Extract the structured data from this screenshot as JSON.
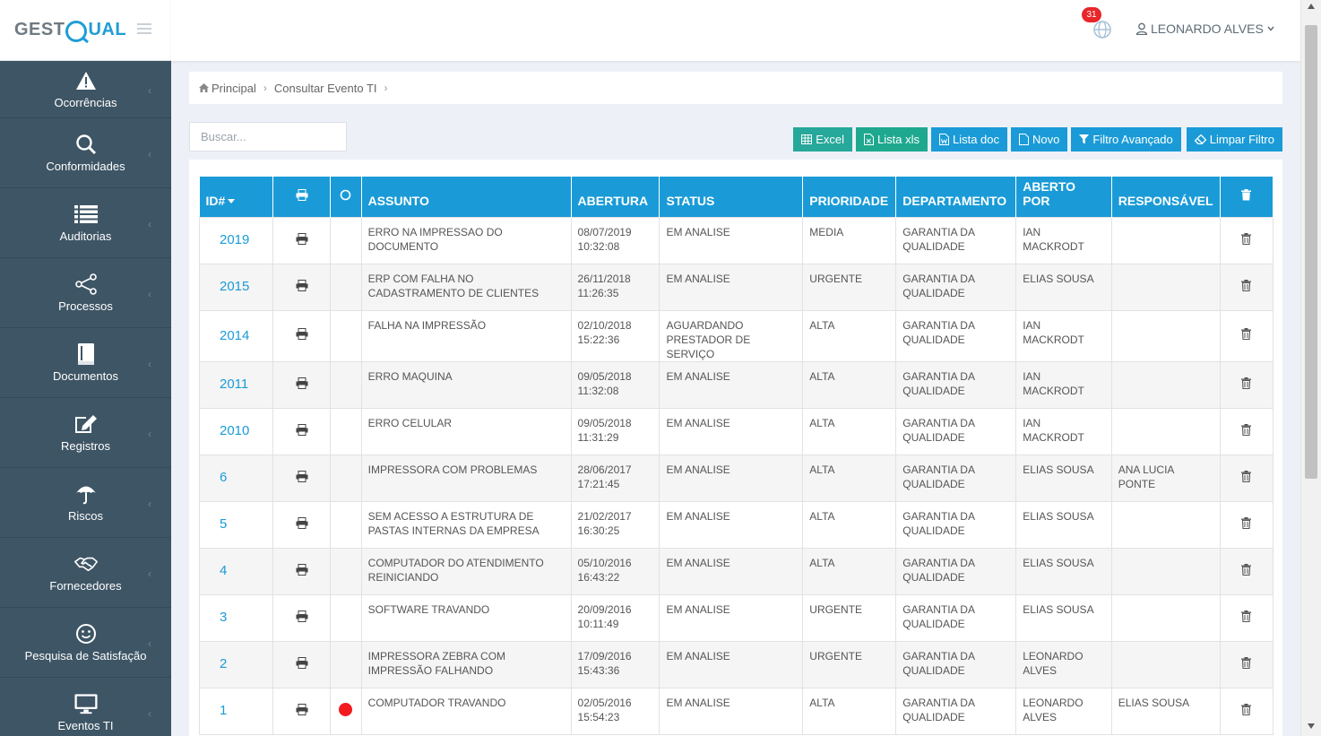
{
  "app": {
    "logo_text_left": "GEST",
    "logo_text_right": "UAL"
  },
  "sidebar": {
    "items": [
      {
        "label": "Ocorrências",
        "icon": "warning-icon"
      },
      {
        "label": "Conformidades",
        "icon": "search-icon"
      },
      {
        "label": "Auditorias",
        "icon": "list-icon"
      },
      {
        "label": "Processos",
        "icon": "share-icon"
      },
      {
        "label": "Documentos",
        "icon": "book-icon"
      },
      {
        "label": "Registros",
        "icon": "edit-icon"
      },
      {
        "label": "Riscos",
        "icon": "umbrella-icon"
      },
      {
        "label": "Fornecedores",
        "icon": "handshake-icon"
      },
      {
        "label": "Pesquisa de Satisfação",
        "icon": "smile-icon"
      },
      {
        "label": "Eventos TI",
        "icon": "monitor-icon"
      }
    ]
  },
  "header": {
    "notification_count": "31",
    "user_name": "LEONARDO ALVES"
  },
  "breadcrumb": {
    "home": "Principal",
    "current": "Consultar Evento TI"
  },
  "search": {
    "placeholder": "Buscar..."
  },
  "toolbar": {
    "excel": "Excel",
    "lista_xls": "Lista xls",
    "lista_doc": "Lista doc",
    "novo": "Novo",
    "filtro_avancado": "Filtro Avançado",
    "limpar_filtro": "Limpar Filtro"
  },
  "table": {
    "columns": {
      "id": "ID#",
      "assunto": "ASSUNTO",
      "abertura": "ABERTURA",
      "status": "STATUS",
      "prioridade": "PRIORIDADE",
      "departamento": "DEPARTAMENTO",
      "aberto_por": "ABERTO POR",
      "responsavel": "RESPONSÁVEL"
    },
    "rows": [
      {
        "id": "2019",
        "flag": false,
        "assunto": "ERRO NA IMPRESSAO DO DOCUMENTO",
        "abertura": "08/07/2019 10:32:08",
        "status": "EM ANALISE",
        "prioridade": "MEDIA",
        "departamento": "GARANTIA DA QUALIDADE",
        "aberto_por": "IAN MACKRODT",
        "responsavel": ""
      },
      {
        "id": "2015",
        "flag": false,
        "assunto": "ERP COM FALHA NO CADASTRAMENTO DE CLIENTES",
        "abertura": "26/11/2018 11:26:35",
        "status": "EM ANALISE",
        "prioridade": "URGENTE",
        "departamento": "GARANTIA DA QUALIDADE",
        "aberto_por": "ELIAS SOUSA",
        "responsavel": ""
      },
      {
        "id": "2014",
        "flag": false,
        "assunto": "FALHA NA IMPRESSÃO",
        "abertura": "02/10/2018 15:22:36",
        "status": "AGUARDANDO PRESTADOR DE SERVIÇO",
        "prioridade": "ALTA",
        "departamento": "GARANTIA DA QUALIDADE",
        "aberto_por": "IAN MACKRODT",
        "responsavel": ""
      },
      {
        "id": "2011",
        "flag": false,
        "assunto": "ERRO MAQUINA",
        "abertura": "09/05/2018 11:32:08",
        "status": "EM ANALISE",
        "prioridade": "ALTA",
        "departamento": "GARANTIA DA QUALIDADE",
        "aberto_por": "IAN MACKRODT",
        "responsavel": ""
      },
      {
        "id": "2010",
        "flag": false,
        "assunto": "ERRO CELULAR",
        "abertura": "09/05/2018 11:31:29",
        "status": "EM ANALISE",
        "prioridade": "ALTA",
        "departamento": "GARANTIA DA QUALIDADE",
        "aberto_por": "IAN MACKRODT",
        "responsavel": ""
      },
      {
        "id": "6",
        "flag": false,
        "assunto": "IMPRESSORA COM PROBLEMAS",
        "abertura": "28/06/2017 17:21:45",
        "status": "EM ANALISE",
        "prioridade": "ALTA",
        "departamento": "GARANTIA DA QUALIDADE",
        "aberto_por": "ELIAS SOUSA",
        "responsavel": "ANA LUCIA PONTE"
      },
      {
        "id": "5",
        "flag": false,
        "assunto": "SEM ACESSO A ESTRUTURA DE PASTAS INTERNAS DA EMPRESA",
        "abertura": "21/02/2017 16:30:25",
        "status": "EM ANALISE",
        "prioridade": "ALTA",
        "departamento": "GARANTIA DA QUALIDADE",
        "aberto_por": "ELIAS SOUSA",
        "responsavel": ""
      },
      {
        "id": "4",
        "flag": false,
        "assunto": "COMPUTADOR DO ATENDIMENTO REINICIANDO",
        "abertura": "05/10/2016 16:43:22",
        "status": "EM ANALISE",
        "prioridade": "ALTA",
        "departamento": "GARANTIA DA QUALIDADE",
        "aberto_por": "ELIAS SOUSA",
        "responsavel": ""
      },
      {
        "id": "3",
        "flag": false,
        "assunto": "SOFTWARE TRAVANDO",
        "abertura": "20/09/2016 10:11:49",
        "status": "EM ANALISE",
        "prioridade": "URGENTE",
        "departamento": "GARANTIA DA QUALIDADE",
        "aberto_por": "ELIAS SOUSA",
        "responsavel": ""
      },
      {
        "id": "2",
        "flag": false,
        "assunto": "IMPRESSORA ZEBRA COM IMPRESSÃO FALHANDO",
        "abertura": "17/09/2016 15:43:36",
        "status": "EM ANALISE",
        "prioridade": "URGENTE",
        "departamento": "GARANTIA DA QUALIDADE",
        "aberto_por": "LEONARDO ALVES",
        "responsavel": ""
      },
      {
        "id": "1",
        "flag": true,
        "assunto": "COMPUTADOR TRAVANDO",
        "abertura": "02/05/2016 15:54:23",
        "status": "EM ANALISE",
        "prioridade": "ALTA",
        "departamento": "GARANTIA DA QUALIDADE",
        "aberto_por": "LEONARDO ALVES",
        "responsavel": "ELIAS SOUSA"
      }
    ]
  },
  "colors": {
    "sidebar_bg": "#3e5565",
    "accent_blue": "#1a9bd7",
    "accent_green": "#26a89a",
    "flag_red": "#f2191f",
    "badge_red": "#e8262a"
  }
}
